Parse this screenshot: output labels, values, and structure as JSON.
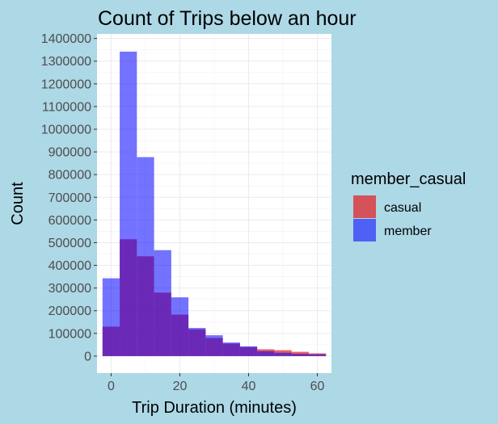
{
  "chart_data": {
    "type": "histogram",
    "title": "Count of Trips below an hour",
    "xlabel": "Trip Duration (minutes)",
    "ylabel": "Count",
    "bin_width": 5,
    "bin_starts": [
      -2.5,
      2.5,
      7.5,
      12.5,
      17.5,
      22.5,
      27.5,
      32.5,
      37.5,
      42.5,
      47.5,
      52.5,
      57.5
    ],
    "x_ticks": [
      0,
      20,
      40,
      60
    ],
    "y_ticks": [
      0,
      100000,
      200000,
      300000,
      400000,
      500000,
      600000,
      700000,
      800000,
      900000,
      1000000,
      1100000,
      1200000,
      1300000,
      1400000
    ],
    "xlim": [
      -4.1,
      64.1
    ],
    "ylim": [
      -75000,
      1420000
    ],
    "grid": true,
    "legend_position": "right",
    "legend_title": "member_casual",
    "series": [
      {
        "name": "casual",
        "color": "#e41a1c",
        "opacity": 0.7,
        "values": [
          130000,
          515000,
          440000,
          280000,
          183000,
          118000,
          80000,
          55000,
          40000,
          30000,
          26000,
          19000,
          12000
        ]
      },
      {
        "name": "member",
        "color": "#0000ff",
        "opacity": 0.55,
        "values": [
          343000,
          1342000,
          877000,
          467000,
          259000,
          124000,
          92000,
          60000,
          43000,
          22000,
          15000,
          10000,
          8000
        ]
      }
    ]
  }
}
